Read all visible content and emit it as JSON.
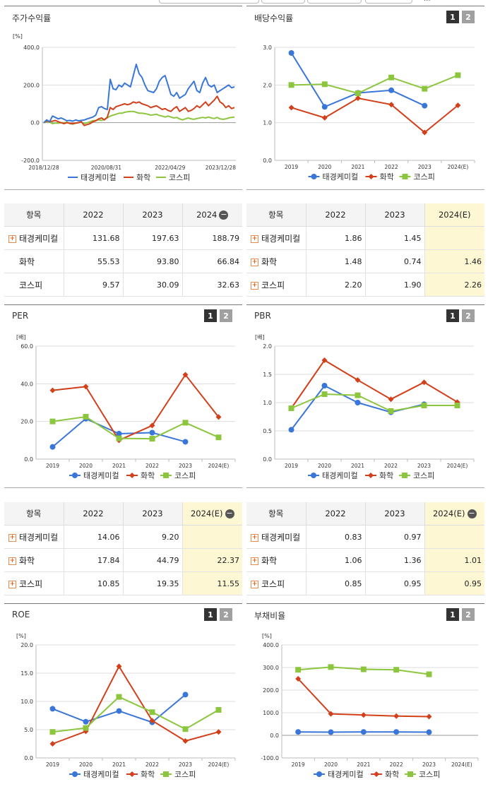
{
  "top_fragment": "...",
  "panels": [
    {
      "id": "stock",
      "title": "주가수익률",
      "pager": [],
      "chart": {
        "type": "line",
        "unit": "[%]",
        "y_ticks": [
          "400.0",
          "200.0",
          "0.0",
          "-200.0"
        ],
        "y_range": [
          -200,
          400
        ],
        "x_tick_labels": [
          "2018/12/28",
          "2020/08/31",
          "2022/04/29",
          "2023/12/28"
        ],
        "legend": [
          "태경케미컬",
          "화학",
          "코스피"
        ]
      }
    },
    {
      "id": "dividend",
      "title": "배당수익률",
      "pager": [
        "1",
        "2"
      ],
      "chart": {
        "type": "line",
        "unit": "",
        "y_ticks": [
          "3.0",
          "2.0",
          "1.0",
          "0.0"
        ],
        "y_range": [
          0,
          3
        ],
        "categories": [
          "2019",
          "2020",
          "2021",
          "2022",
          "2023",
          "2024(E)"
        ],
        "legend": [
          "태경케미컬",
          "화학",
          "코스피"
        ]
      }
    },
    {
      "id": "per",
      "title": "PER",
      "pager": [
        "1",
        "2"
      ],
      "chart": {
        "type": "line",
        "unit": "[배]",
        "y_ticks": [
          "60.0",
          "40.0",
          "20.0",
          "0.0"
        ],
        "y_range": [
          0,
          60
        ],
        "categories": [
          "2019",
          "2020",
          "2021",
          "2022",
          "2023",
          "2024(E)"
        ],
        "legend": [
          "태경케미컬",
          "화학",
          "코스피"
        ]
      }
    },
    {
      "id": "pbr",
      "title": "PBR",
      "pager": [
        "1",
        "2"
      ],
      "chart": {
        "type": "line",
        "unit": "[배]",
        "y_ticks": [
          "2.0",
          "1.5",
          "1.0",
          "0.5",
          "0.0"
        ],
        "y_range": [
          0,
          2
        ],
        "categories": [
          "2019",
          "2020",
          "2021",
          "2022",
          "2023",
          "2024(E)"
        ],
        "legend": [
          "태경케미컬",
          "화학",
          "코스피"
        ]
      }
    },
    {
      "id": "roe",
      "title": "ROE",
      "pager": [
        "1",
        "2"
      ],
      "chart": {
        "type": "line",
        "unit": "[%]",
        "y_ticks": [
          "20.0",
          "15.0",
          "10.0",
          "5.0",
          "0.0"
        ],
        "y_range": [
          0,
          20
        ],
        "categories": [
          "2019",
          "2020",
          "2021",
          "2022",
          "2023",
          "2024(E)"
        ],
        "legend": [
          "태경케미컬",
          "화학",
          "코스피"
        ]
      }
    },
    {
      "id": "debt",
      "title": "부채비율",
      "pager": [
        "1",
        "2"
      ],
      "chart": {
        "type": "line",
        "unit": "[%]",
        "y_ticks": [
          "400.0",
          "300.0",
          "200.0",
          "100.0",
          "0.0",
          "-100.0"
        ],
        "y_range": [
          -100,
          400
        ],
        "categories": [
          "2019",
          "2020",
          "2021",
          "2022",
          "2023",
          "2024(E)"
        ],
        "legend": [
          "태경케미컬",
          "화학",
          "코스피"
        ]
      }
    }
  ],
  "series_colors": {
    "태경케미컬": "#3a76d8",
    "화학": "#d2401b",
    "코스피": "#8cc63f"
  },
  "chart_data": [
    {
      "type": "line",
      "title": "주가수익률",
      "ylabel": "[%]",
      "ylim": [
        -200,
        400
      ],
      "x_labels": [
        "2018/12/28",
        "2020/08/31",
        "2022/04/29",
        "2023/12/28"
      ],
      "series": [
        {
          "name": "태경케미컬",
          "values": [
            0,
            15,
            5,
            35,
            28,
            20,
            25,
            18,
            10,
            12,
            8,
            14,
            10,
            12,
            14,
            20,
            25,
            30,
            40,
            80,
            85,
            75,
            70,
            230,
            180,
            175,
            200,
            190,
            210,
            200,
            190,
            250,
            310,
            260,
            240,
            200,
            170,
            165,
            160,
            180,
            220,
            240,
            250,
            200,
            150,
            140,
            160,
            130,
            140,
            150,
            180,
            200,
            220,
            170,
            160,
            210,
            240,
            200,
            190,
            200,
            160,
            170,
            180,
            190,
            200,
            185,
            190
          ]
        },
        {
          "name": "화학",
          "values": [
            0,
            10,
            5,
            8,
            12,
            5,
            0,
            -5,
            0,
            -3,
            -5,
            -2,
            0,
            5,
            -15,
            -10,
            -5,
            5,
            10,
            20,
            25,
            15,
            30,
            80,
            70,
            85,
            90,
            95,
            100,
            95,
            100,
            110,
            105,
            110,
            100,
            95,
            90,
            80,
            85,
            90,
            80,
            70,
            75,
            65,
            60,
            75,
            85,
            60,
            70,
            80,
            60,
            65,
            75,
            90,
            80,
            95,
            110,
            90,
            105,
            120,
            140,
            110,
            100,
            80,
            90,
            75,
            80
          ]
        },
        {
          "name": "코스피",
          "values": [
            0,
            5,
            3,
            -5,
            -2,
            -3,
            0,
            0,
            2,
            -5,
            -8,
            -3,
            0,
            3,
            -5,
            0,
            5,
            10,
            12,
            15,
            12,
            18,
            25,
            35,
            40,
            45,
            50,
            50,
            55,
            58,
            60,
            60,
            55,
            50,
            50,
            48,
            45,
            40,
            42,
            45,
            38,
            35,
            30,
            35,
            30,
            25,
            28,
            20,
            15,
            20,
            25,
            20,
            18,
            22,
            25,
            28,
            25,
            30,
            25,
            22,
            28,
            20,
            18,
            20,
            25,
            28,
            30
          ]
        }
      ]
    },
    {
      "type": "line",
      "title": "배당수익률",
      "categories": [
        "2019",
        "2020",
        "2021",
        "2022",
        "2023",
        "2024(E)"
      ],
      "ylim": [
        0,
        3
      ],
      "series": [
        {
          "name": "태경케미컬",
          "values": [
            2.85,
            1.42,
            1.79,
            1.86,
            1.45,
            null
          ]
        },
        {
          "name": "화학",
          "values": [
            1.4,
            1.13,
            1.65,
            1.48,
            0.74,
            1.46
          ]
        },
        {
          "name": "코스피",
          "values": [
            2.0,
            2.02,
            1.78,
            2.2,
            1.9,
            2.26
          ]
        }
      ]
    },
    {
      "type": "line",
      "title": "PER",
      "ylabel": "[배]",
      "categories": [
        "2019",
        "2020",
        "2021",
        "2022",
        "2023",
        "2024(E)"
      ],
      "ylim": [
        0,
        60
      ],
      "series": [
        {
          "name": "태경케미컬",
          "values": [
            6.5,
            21.5,
            13.5,
            14.06,
            9.2,
            null
          ]
        },
        {
          "name": "화학",
          "values": [
            36.5,
            38.5,
            10.0,
            17.84,
            44.79,
            22.37
          ]
        },
        {
          "name": "코스피",
          "values": [
            20.0,
            22.5,
            11.0,
            10.85,
            19.35,
            11.55
          ]
        }
      ]
    },
    {
      "type": "line",
      "title": "PBR",
      "ylabel": "[배]",
      "categories": [
        "2019",
        "2020",
        "2021",
        "2022",
        "2023",
        "2024(E)"
      ],
      "ylim": [
        0,
        2
      ],
      "series": [
        {
          "name": "태경케미컬",
          "values": [
            0.52,
            1.3,
            1.0,
            0.83,
            0.97,
            null
          ]
        },
        {
          "name": "화학",
          "values": [
            0.9,
            1.75,
            1.4,
            1.06,
            1.36,
            1.01
          ]
        },
        {
          "name": "코스피",
          "values": [
            0.9,
            1.15,
            1.13,
            0.85,
            0.95,
            0.95
          ]
        }
      ]
    },
    {
      "type": "line",
      "title": "ROE",
      "ylabel": "[%]",
      "categories": [
        "2019",
        "2020",
        "2021",
        "2022",
        "2023",
        "2024(E)"
      ],
      "ylim": [
        0,
        20
      ],
      "series": [
        {
          "name": "태경케미컬",
          "values": [
            8.7,
            6.4,
            8.3,
            6.3,
            11.2,
            null
          ]
        },
        {
          "name": "화학",
          "values": [
            2.5,
            4.7,
            16.2,
            6.6,
            3.0,
            4.6
          ]
        },
        {
          "name": "코스피",
          "values": [
            4.6,
            5.3,
            10.8,
            8.1,
            5.1,
            8.5
          ]
        }
      ]
    },
    {
      "type": "line",
      "title": "부채비율",
      "ylabel": "[%]",
      "categories": [
        "2019",
        "2020",
        "2021",
        "2022",
        "2023",
        "2024(E)"
      ],
      "ylim": [
        -100,
        400
      ],
      "series": [
        {
          "name": "태경케미컬",
          "values": [
            15,
            14,
            15,
            15,
            14,
            null
          ]
        },
        {
          "name": "화학",
          "values": [
            250,
            95,
            90,
            85,
            83,
            null
          ]
        },
        {
          "name": "코스피",
          "values": [
            290,
            302,
            292,
            290,
            270,
            null
          ]
        }
      ]
    }
  ],
  "tables": [
    {
      "id": "stock-table",
      "header": [
        "항목",
        "2022",
        "2023",
        "2024"
      ],
      "header_minus": true,
      "rows": [
        {
          "name": "태경케미컬",
          "plus": true,
          "values": [
            "131.68",
            "197.63",
            "188.79"
          ]
        },
        {
          "name": "화학",
          "plus": false,
          "values": [
            "55.53",
            "93.80",
            "66.84"
          ]
        },
        {
          "name": "코스피",
          "plus": false,
          "values": [
            "9.57",
            "30.09",
            "32.63"
          ]
        }
      ],
      "highlight_last": false
    },
    {
      "id": "dividend-table",
      "header": [
        "항목",
        "2022",
        "2023",
        "2024(E)"
      ],
      "header_minus": false,
      "rows": [
        {
          "name": "태경케미컬",
          "plus": true,
          "values": [
            "1.86",
            "1.45",
            ""
          ]
        },
        {
          "name": "화학",
          "plus": true,
          "values": [
            "1.48",
            "0.74",
            "1.46"
          ]
        },
        {
          "name": "코스피",
          "plus": true,
          "values": [
            "2.20",
            "1.90",
            "2.26"
          ]
        }
      ],
      "highlight_last": true
    },
    {
      "id": "per-table",
      "header": [
        "항목",
        "2022",
        "2023",
        "2024(E)"
      ],
      "header_minus": true,
      "rows": [
        {
          "name": "태경케미컬",
          "plus": true,
          "values": [
            "14.06",
            "9.20",
            ""
          ]
        },
        {
          "name": "화학",
          "plus": true,
          "values": [
            "17.84",
            "44.79",
            "22.37"
          ]
        },
        {
          "name": "코스피",
          "plus": true,
          "values": [
            "10.85",
            "19.35",
            "11.55"
          ]
        }
      ],
      "highlight_last": true
    },
    {
      "id": "pbr-table",
      "header": [
        "항목",
        "2022",
        "2023",
        "2024(E)"
      ],
      "header_minus": true,
      "rows": [
        {
          "name": "태경케미컬",
          "plus": true,
          "values": [
            "0.83",
            "0.97",
            ""
          ]
        },
        {
          "name": "화학",
          "plus": true,
          "values": [
            "1.06",
            "1.36",
            "1.01"
          ]
        },
        {
          "name": "코스피",
          "plus": true,
          "values": [
            "0.85",
            "0.95",
            "0.95"
          ]
        }
      ],
      "highlight_last": true
    }
  ]
}
